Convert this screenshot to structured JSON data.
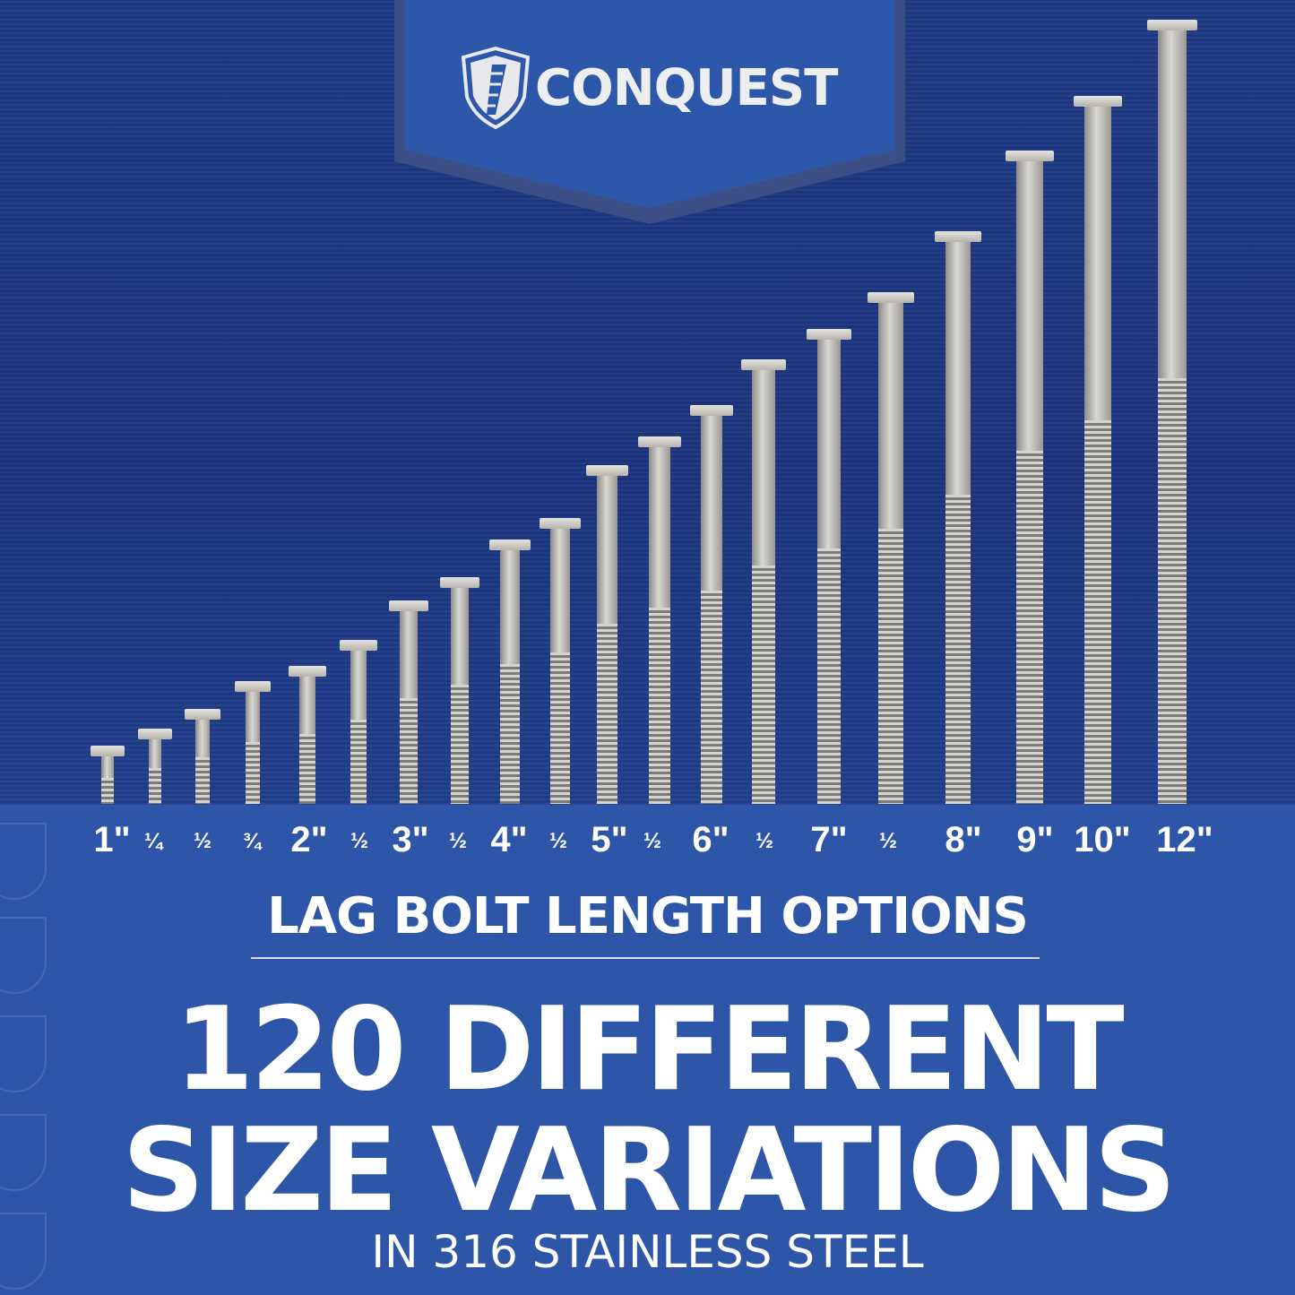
{
  "brand": {
    "name": "CONQUEST",
    "logo_icon": "shield-screw-icon"
  },
  "colors": {
    "panel": "#2d55a8",
    "background": "#1c3580",
    "text": "#ffffff"
  },
  "size_labels": [
    "1\"",
    "¼",
    "½",
    "¾",
    "2\"",
    "½",
    "3\"",
    "½",
    "4\"",
    "½",
    "5\"",
    "½",
    "6\"",
    "½",
    "7\"",
    "½",
    "8\"",
    "9\"",
    "10\"",
    "12\""
  ],
  "headline": "LAG BOLT LENGTH OPTIONS",
  "main_line_1": "120 DIFFERENT",
  "main_line_2": "SIZE VARIATIONS",
  "subline": "IN 316 STAINLESS STEEL"
}
